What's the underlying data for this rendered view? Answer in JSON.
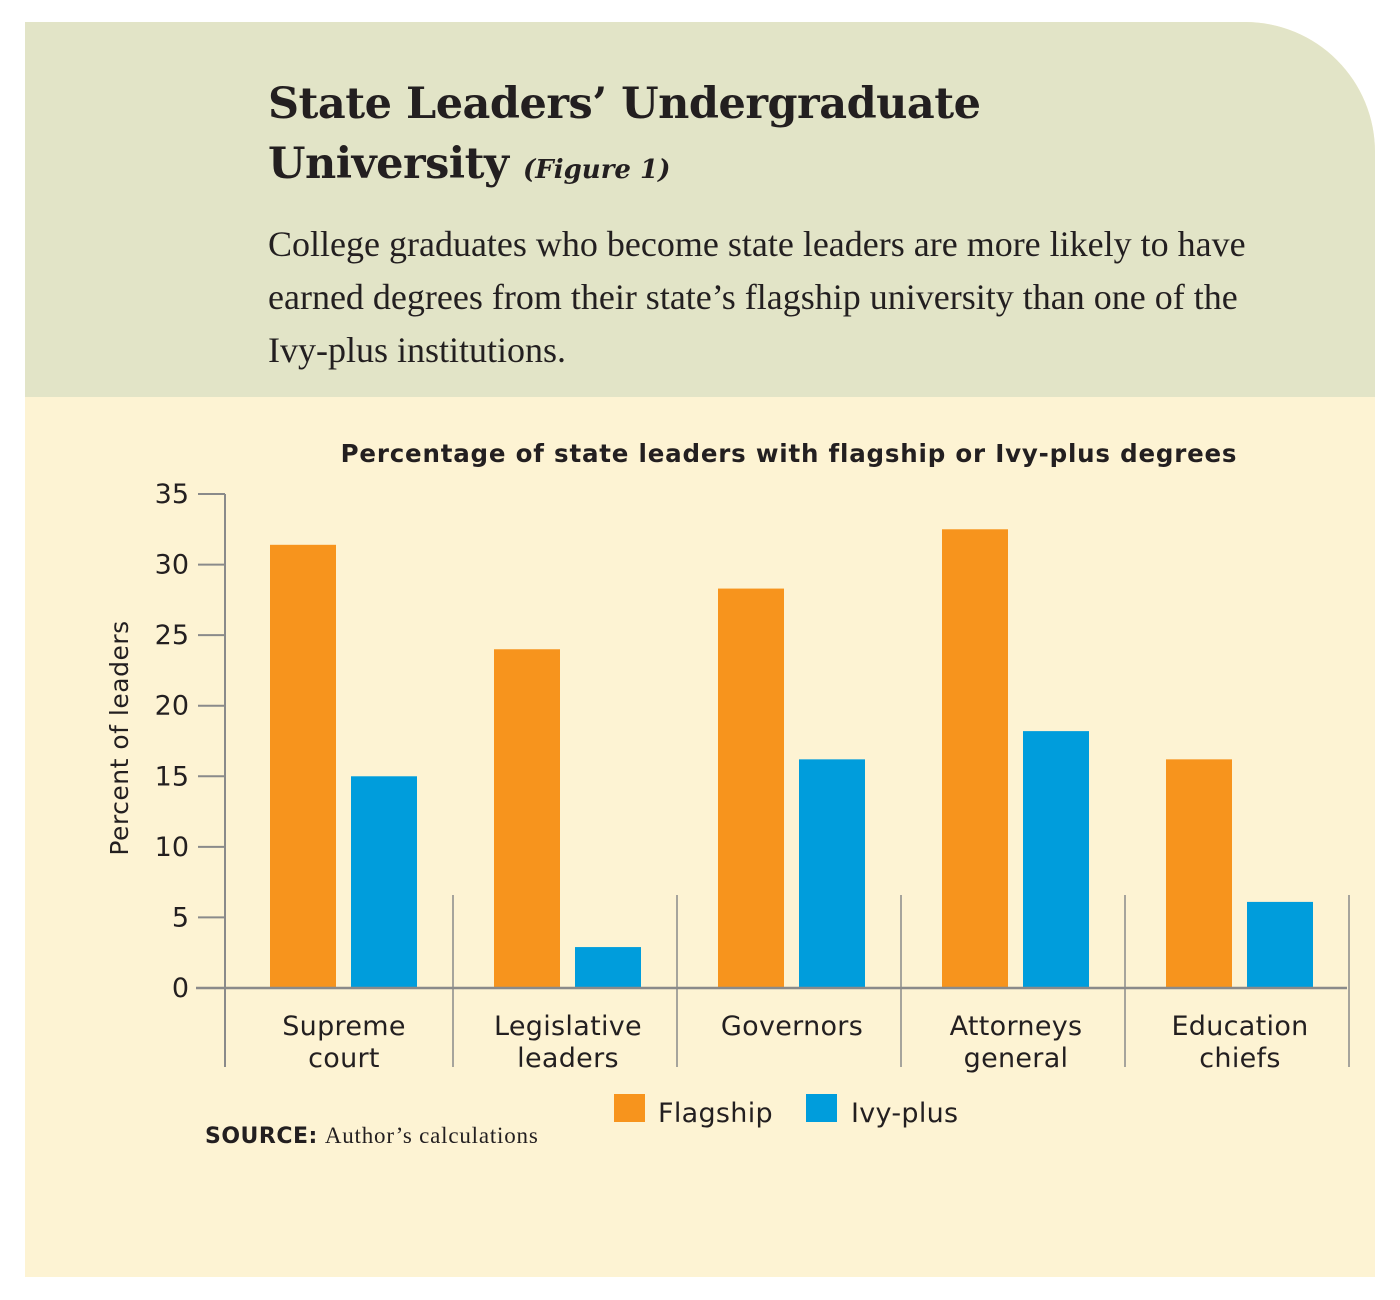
{
  "header": {
    "title_line1": "State Leaders’ Undergraduate",
    "title_line2": "University",
    "figure_label": "(Figure 1)",
    "subtitle": "College graduates who become state leaders are more likely to have earned degrees from their state’s flagship university than one of the Ivy-plus institutions."
  },
  "chart_data": {
    "type": "bar",
    "title": "Percentage of state leaders with flagship or Ivy-plus degrees",
    "ylabel": "Percent of leaders",
    "xlabel": "",
    "ylim": [
      0,
      35
    ],
    "yticks": [
      0,
      5,
      10,
      15,
      20,
      25,
      30,
      35
    ],
    "categories": [
      [
        "Supreme",
        "court"
      ],
      [
        "Legislative",
        "leaders"
      ],
      [
        "Governors"
      ],
      [
        "Attorneys",
        "general"
      ],
      [
        "Education",
        "chiefs"
      ]
    ],
    "series": [
      {
        "name": "Flagship",
        "color": "#f7941d",
        "values": [
          31.4,
          24.0,
          28.3,
          32.5,
          16.2
        ]
      },
      {
        "name": "Ivy-plus",
        "color": "#009ddc",
        "values": [
          15.0,
          2.9,
          16.2,
          18.2,
          6.1
        ]
      }
    ],
    "legend_position": "bottom-center",
    "grid": false
  },
  "source": {
    "label": "SOURCE:",
    "text": "Author’s  calculations"
  }
}
